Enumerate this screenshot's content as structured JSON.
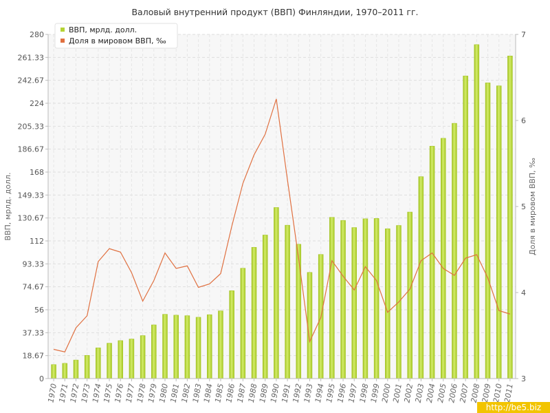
{
  "chart_data": {
    "type": "bar+line",
    "title": "Валовый внутренний продукт (ВВП) Финляндии, 1970–2011 гг.",
    "categories": [
      "1970",
      "1971",
      "1972",
      "1973",
      "1974",
      "1975",
      "1976",
      "1977",
      "1978",
      "1979",
      "1980",
      "1981",
      "1982",
      "1983",
      "1984",
      "1985",
      "1986",
      "1987",
      "1988",
      "1989",
      "1990",
      "1991",
      "1992",
      "1993",
      "1994",
      "1995",
      "1996",
      "1997",
      "1998",
      "1999",
      "2000",
      "2001",
      "2002",
      "2003",
      "2004",
      "2005",
      "2006",
      "2007",
      "2008",
      "2009",
      "2010",
      "2011"
    ],
    "series": [
      {
        "name": "ВВП, мрлд. долл.",
        "type": "bar",
        "axis": "left",
        "color": "#b5d334",
        "values": [
          11.4,
          12.4,
          15.1,
          18.9,
          25.0,
          28.8,
          30.9,
          32.2,
          35.0,
          43.7,
          52.3,
          51.6,
          51.2,
          49.9,
          52.0,
          55.1,
          71.5,
          89.8,
          106.8,
          116.8,
          139.2,
          124.8,
          109.3,
          86.4,
          101.0,
          131.2,
          128.7,
          122.9,
          130.0,
          130.3,
          121.9,
          124.6,
          135.5,
          164.3,
          189.1,
          195.5,
          207.7,
          246.2,
          271.7,
          240.6,
          238.2,
          262.5
        ]
      },
      {
        "name": "Доля в мировом ВВП, ‰",
        "type": "line",
        "axis": "right",
        "color": "#e07040",
        "values": [
          3.34,
          3.31,
          3.59,
          3.73,
          4.36,
          4.51,
          4.47,
          4.23,
          3.9,
          4.14,
          4.46,
          4.28,
          4.31,
          4.06,
          4.1,
          4.22,
          4.77,
          5.27,
          5.6,
          5.84,
          6.25,
          5.31,
          4.4,
          3.43,
          3.71,
          4.37,
          4.19,
          4.03,
          4.3,
          4.14,
          3.77,
          3.89,
          4.04,
          4.37,
          4.46,
          4.28,
          4.2,
          4.4,
          4.44,
          4.17,
          3.79,
          3.75
        ]
      }
    ],
    "y_ticks": [
      "0",
      "18.67",
      "37.33",
      "56",
      "74.67",
      "93.33",
      "112",
      "130.67",
      "149.33",
      "168",
      "186.67",
      "205.33",
      "224",
      "242.67",
      "261.33",
      "280"
    ],
    "ylim": [
      0,
      280
    ],
    "y2_ticks": [
      "3",
      "4",
      "5",
      "6",
      "7"
    ],
    "y2lim": [
      3,
      7
    ],
    "ylabel": "ВВП, мрлд. долл.",
    "y2label": "Доля в мировом ВВП, ‰",
    "xlabel": "",
    "grid": true,
    "legend": "top-left"
  },
  "watermark": "http://be5.biz",
  "colors": {
    "bar": "#b5d334",
    "line": "#e07040",
    "grid": "#dddddd",
    "plot_bg": "#f7f7f7"
  }
}
